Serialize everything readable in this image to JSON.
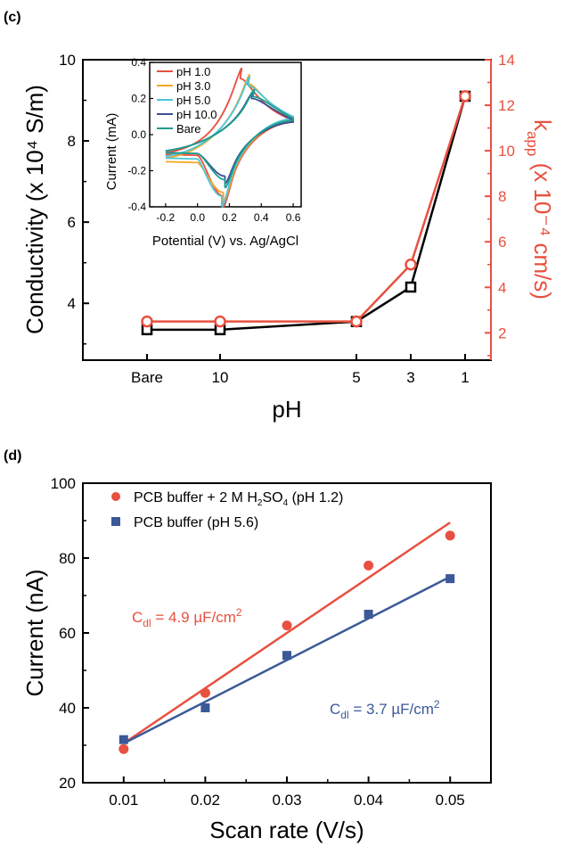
{
  "panel_c": {
    "label": "(c)",
    "xlabel": "pH",
    "ylabel_left": "Conductivity (x 10⁴ S/m)",
    "ylabel_right": "k",
    "ylabel_right_sub": "app",
    "ylabel_right_rest": " (x 10⁻⁴ cm/s)",
    "left_ticks": [
      "4",
      "6",
      "8",
      "10"
    ],
    "right_ticks": [
      "2",
      "4",
      "6",
      "8",
      "10",
      "12",
      "14"
    ],
    "x_ticks": [
      "Bare",
      "10",
      "5",
      "3",
      "1"
    ],
    "colors": {
      "left": "#000000",
      "right": "#e8503f"
    }
  },
  "panel_d": {
    "label": "(d)",
    "xlabel": "Scan rate (V/s)",
    "ylabel": "Current (nA)",
    "x_ticks": [
      "0.01",
      "0.02",
      "0.03",
      "0.04",
      "0.05"
    ],
    "y_ticks": [
      "20",
      "40",
      "60",
      "80",
      "100"
    ],
    "legend": [
      {
        "pre": "PCB buffer + 2 M H",
        "sub1": "2",
        "mid": "SO",
        "sub2": "4",
        "post": " (pH 1.2)",
        "color": "#e8503f"
      },
      {
        "text": "PCB buffer (pH 5.6)",
        "color": "#3b5998"
      }
    ],
    "annot_red": {
      "pre": "C",
      "sub": "dl",
      "mid": " = 4.9 µF/cm",
      "sup": "2"
    },
    "annot_blue": {
      "pre": "C",
      "sub": "dl",
      "mid": " = 3.7 µF/cm",
      "sup": "2"
    }
  },
  "chart_data": [
    {
      "type": "line",
      "panel": "(c)",
      "xlabel": "pH",
      "categories": [
        "Bare",
        "10",
        "5",
        "3",
        "1"
      ],
      "series": [
        {
          "axis": "left",
          "color": "#000000",
          "marker": "square",
          "values": [
            3.35,
            3.35,
            3.55,
            4.4,
            9.1
          ]
        },
        {
          "axis": "right",
          "color": "#e8503f",
          "marker": "circle",
          "values": [
            2.5,
            2.5,
            2.5,
            5.0,
            12.4
          ]
        }
      ],
      "ylabel_left": "Conductivity (x 10⁴ S/m)",
      "ylabel_right": "k_app (x 10⁻⁴ cm/s)",
      "ylim_left": [
        2.6,
        10
      ],
      "ylim_right": [
        0.8,
        14
      ],
      "grid": false
    },
    {
      "type": "line",
      "panel": "(c) inset",
      "xlabel": "Potential (V) vs. Ag/AgCl",
      "ylabel": "Current (mA)",
      "xlim": [
        -0.3,
        0.65
      ],
      "ylim": [
        -0.4,
        0.4
      ],
      "x_ticks": [
        "-0.2",
        "0.0",
        "0.2",
        "0.4",
        "0.6"
      ],
      "y_ticks": [
        "-0.4",
        "-0.2",
        "0.0",
        "0.2",
        "0.4"
      ],
      "legend_position": "top-left",
      "series": [
        {
          "name": "pH 1.0",
          "color": "#e8503f",
          "anodic_peak": [
            0.27,
            0.31
          ],
          "cathodic_peak": [
            0.16,
            -0.34
          ],
          "upper_end": [
            0.6,
            0.08
          ],
          "lower_start": [
            -0.2,
            -0.11
          ],
          "upper_start": [
            -0.2,
            -0.1
          ],
          "lower_end": [
            0.6,
            0.07
          ]
        },
        {
          "name": "pH 3.0",
          "color": "#f5a623",
          "anodic_peak": [
            0.32,
            0.28
          ],
          "cathodic_peak": [
            0.16,
            -0.32
          ],
          "upper_end": [
            0.6,
            0.09
          ],
          "lower_start": [
            -0.2,
            -0.15
          ],
          "upper_start": [
            -0.2,
            -0.13
          ],
          "lower_end": [
            0.6,
            0.08
          ]
        },
        {
          "name": "pH 5.0",
          "color": "#4fc6d6",
          "anodic_peak": [
            0.32,
            0.27
          ],
          "cathodic_peak": [
            0.15,
            -0.34
          ],
          "upper_end": [
            0.6,
            0.1
          ],
          "lower_start": [
            -0.2,
            -0.13
          ],
          "upper_start": [
            -0.2,
            -0.12
          ],
          "lower_end": [
            0.6,
            0.09
          ]
        },
        {
          "name": "pH 10.0",
          "color": "#3c4e94",
          "anodic_peak": [
            0.34,
            0.2
          ],
          "cathodic_peak": [
            0.17,
            -0.23
          ],
          "upper_end": [
            0.6,
            0.08
          ],
          "lower_start": [
            -0.2,
            -0.1
          ],
          "upper_start": [
            -0.2,
            -0.09
          ],
          "lower_end": [
            0.6,
            0.07
          ]
        },
        {
          "name": "Bare",
          "color": "#1a9e8f",
          "anodic_peak": [
            0.35,
            0.21
          ],
          "cathodic_peak": [
            0.17,
            -0.25
          ],
          "upper_end": [
            0.6,
            0.09
          ],
          "lower_start": [
            -0.2,
            -0.1
          ],
          "upper_start": [
            -0.2,
            -0.09
          ],
          "lower_end": [
            0.6,
            0.08
          ]
        }
      ]
    },
    {
      "type": "scatter",
      "panel": "(d)",
      "xlabel": "Scan rate (V/s)",
      "ylabel": "Current (nA)",
      "xlim": [
        0.005,
        0.055
      ],
      "ylim": [
        20,
        100
      ],
      "legend_position": "top-left",
      "series": [
        {
          "name": "PCB buffer + 2 M H₂SO₄ (pH 1.2)",
          "color": "#e8503f",
          "marker": "circle",
          "x": [
            0.01,
            0.02,
            0.03,
            0.04,
            0.05
          ],
          "values": [
            29,
            44,
            62,
            78,
            86
          ],
          "fit": [
            [
              0.01,
              30.5
            ],
            [
              0.05,
              89.5
            ]
          ]
        },
        {
          "name": "PCB buffer (pH 5.6)",
          "color": "#3b5998",
          "marker": "square",
          "x": [
            0.01,
            0.02,
            0.03,
            0.04,
            0.05
          ],
          "values": [
            31.5,
            40,
            54,
            65,
            74.5
          ],
          "fit": [
            [
              0.01,
              30.5
            ],
            [
              0.05,
              75
            ]
          ]
        }
      ],
      "grid": false
    }
  ]
}
